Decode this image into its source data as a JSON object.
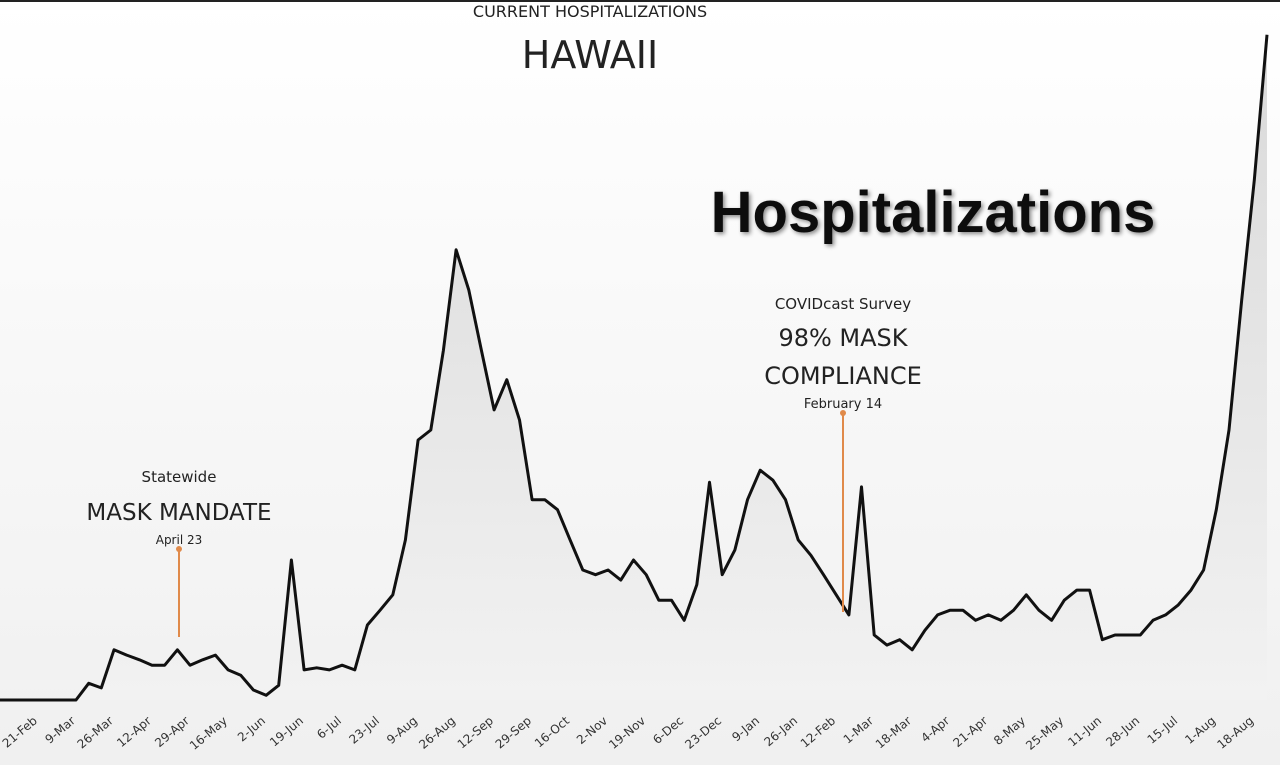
{
  "chart_data": {
    "type": "line",
    "title": "HAWAII",
    "subtitle": "CURRENT HOSPITALIZATIONS",
    "overlay_text": "Hospitalizations",
    "categories": [
      "21-Feb",
      null,
      null,
      "9-Mar",
      null,
      null,
      "26-Mar",
      null,
      null,
      "12-Apr",
      null,
      null,
      "29-Apr",
      null,
      null,
      "16-May",
      null,
      null,
      "2-Jun",
      null,
      null,
      "19-Jun",
      null,
      null,
      "6-Jul",
      null,
      null,
      "23-Jul",
      null,
      null,
      "9-Aug",
      null,
      null,
      "26-Aug",
      null,
      null,
      "12-Sep",
      null,
      null,
      "29-Sep",
      null,
      null,
      "16-Oct",
      null,
      null,
      "2-Nov",
      null,
      null,
      "19-Nov",
      null,
      null,
      "6-Dec",
      null,
      null,
      "23-Dec",
      null,
      null,
      "9-Jan",
      null,
      null,
      "26-Jan",
      null,
      null,
      "12-Feb",
      null,
      null,
      "1-Mar",
      null,
      null,
      "18-Mar",
      null,
      null,
      "4-Apr",
      null,
      null,
      "21-Apr",
      null,
      null,
      "8-May",
      null,
      null,
      "25-May",
      null,
      null,
      "11-Jun",
      null,
      null,
      "28-Jun",
      null,
      null,
      "15-Jul",
      null,
      null,
      "1-Aug",
      null,
      null,
      "18-Aug",
      null
    ],
    "series": [
      {
        "name": "Hospitalizations",
        "color": "#111111",
        "values": [
          0,
          0,
          0,
          0,
          2.5,
          1.8,
          7.5,
          6.7,
          6.0,
          5.2,
          5.2,
          7.5,
          5.2,
          6.0,
          6.7,
          4.5,
          3.7,
          1.5,
          0.7,
          2.2,
          20.9,
          4.5,
          4.8,
          4.5,
          5.2,
          4.5,
          11.2,
          13.4,
          15.7,
          23.9,
          38.8,
          40.3,
          52.2,
          67.2,
          61.2,
          52.2,
          43.3,
          47.8,
          41.8,
          29.9,
          29.9,
          28.4,
          23.9,
          19.4,
          18.7,
          19.4,
          17.9,
          20.9,
          18.7,
          14.9,
          14.9,
          11.9,
          17.2,
          32.5,
          18.7,
          22.4,
          29.9,
          34.3,
          32.8,
          29.9,
          23.9,
          21.6,
          18.7,
          15.7,
          12.7,
          31.8,
          9.7,
          8.2,
          9.0,
          7.5,
          10.4,
          12.7,
          13.4,
          13.4,
          11.9,
          12.7,
          11.9,
          13.4,
          15.7,
          13.4,
          11.9,
          14.9,
          16.4,
          16.4,
          9.0,
          9.7,
          9.7,
          9.7,
          11.9,
          12.7,
          14.2,
          16.4,
          19.4,
          28.4,
          40.3,
          59.7,
          77.6,
          99.3
        ]
      }
    ],
    "ylim": [
      0,
      100
    ],
    "annotations": [
      {
        "label": "Statewide",
        "title": "MASK MANDATE",
        "date": "April 23",
        "color": "#e08a4a"
      },
      {
        "label": "COVIDcast Survey",
        "title": "98% MASK",
        "title2": "COMPLIANCE",
        "date": "February 14",
        "color": "#e08a4a"
      }
    ]
  }
}
